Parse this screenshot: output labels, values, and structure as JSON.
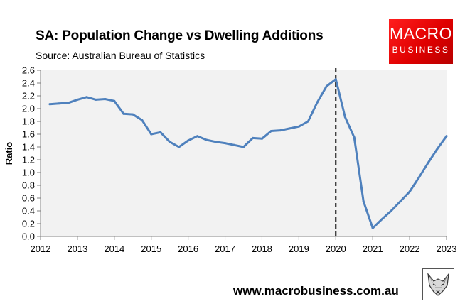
{
  "header": {
    "title": "SA: Population Change vs Dwelling Additions",
    "source": "Source: Australian Bureau of Statistics"
  },
  "logo": {
    "line1": "MACRO",
    "line2": "BUSINESS",
    "color": "#e60000"
  },
  "footer": {
    "url": "www.macrobusiness.com.au",
    "mascot_icon": "fox-icon"
  },
  "colors": {
    "series": "#4f81bd",
    "plot_bg": "#f2f2f2",
    "marker": "#000000"
  },
  "chart_data": {
    "type": "line",
    "title": "SA: Population Change vs Dwelling Additions",
    "xlabel": "",
    "ylabel": "Ratio",
    "xlim": [
      2012,
      2023
    ],
    "ylim": [
      0,
      2.6
    ],
    "ytick_step": 0.2,
    "xticks": [
      "2012",
      "2013",
      "2014",
      "2015",
      "2016",
      "2017",
      "2018",
      "2019",
      "2020",
      "2021",
      "2022",
      "2023"
    ],
    "yticks": [
      "0.0",
      "0.2",
      "0.4",
      "0.6",
      "0.8",
      "1.0",
      "1.2",
      "1.4",
      "1.6",
      "1.8",
      "2.0",
      "2.2",
      "2.4",
      "2.6"
    ],
    "grid": false,
    "legend": "none",
    "vline": {
      "x": 2020,
      "style": "dashed"
    },
    "series": [
      {
        "name": "Ratio",
        "x": [
          2012.25,
          2012.5,
          2012.75,
          2013.0,
          2013.25,
          2013.5,
          2013.75,
          2014.0,
          2014.25,
          2014.5,
          2014.75,
          2015.0,
          2015.25,
          2015.5,
          2015.75,
          2016.0,
          2016.25,
          2016.5,
          2016.75,
          2017.0,
          2017.25,
          2017.5,
          2017.75,
          2018.0,
          2018.25,
          2018.5,
          2018.75,
          2019.0,
          2019.25,
          2019.5,
          2019.75,
          2020.0,
          2020.25,
          2020.5,
          2020.75,
          2021.0,
          2021.25,
          2021.5,
          2021.75,
          2022.0,
          2022.25,
          2022.5,
          2022.75,
          2023.0
        ],
        "values": [
          2.07,
          2.08,
          2.09,
          2.14,
          2.18,
          2.14,
          2.15,
          2.12,
          1.92,
          1.91,
          1.82,
          1.6,
          1.63,
          1.48,
          1.4,
          1.5,
          1.57,
          1.51,
          1.48,
          1.46,
          1.43,
          1.4,
          1.54,
          1.53,
          1.65,
          1.66,
          1.69,
          1.72,
          1.8,
          2.1,
          2.35,
          2.46,
          1.87,
          1.55,
          0.55,
          0.13,
          0.27,
          0.4,
          0.55,
          0.7,
          0.92,
          1.15,
          1.37,
          1.57
        ]
      }
    ]
  }
}
